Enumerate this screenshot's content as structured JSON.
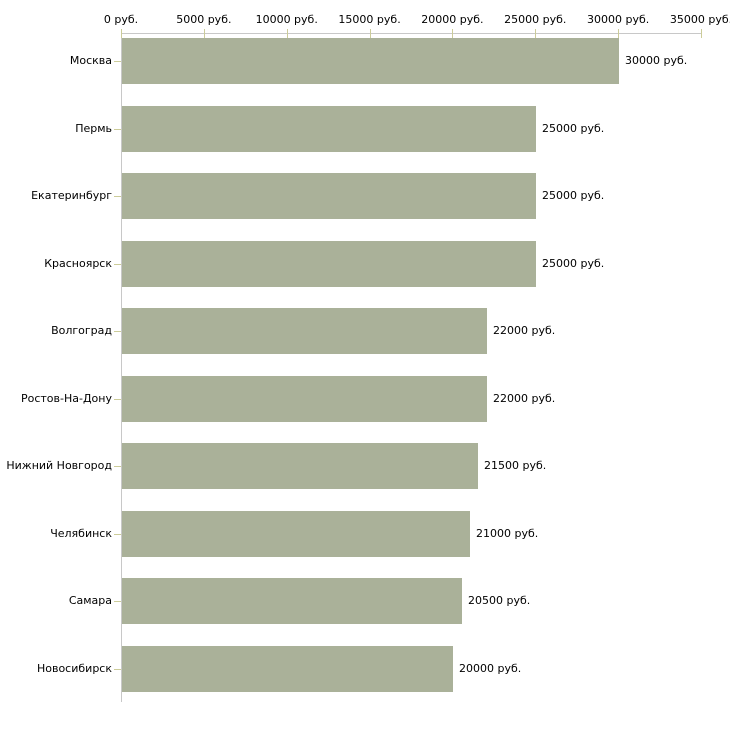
{
  "chart_data": {
    "type": "bar",
    "orientation": "horizontal",
    "title": "",
    "xlabel": "",
    "ylabel": "",
    "categories": [
      "Москва",
      "Пермь",
      "Екатеринбург",
      "Красноярск",
      "Волгоград",
      "Ростов-На-Дону",
      "Нижний Новгород",
      "Челябинск",
      "Самара",
      "Новосибирск"
    ],
    "values": [
      30000,
      25000,
      25000,
      25000,
      22000,
      22000,
      21500,
      21000,
      20500,
      20000
    ],
    "value_labels": [
      "30000 руб.",
      "25000 руб.",
      "25000 руб.",
      "25000 руб.",
      "22000 руб.",
      "22000 руб.",
      "21500 руб.",
      "21000 руб.",
      "20500 руб.",
      "20000 руб."
    ],
    "x_ticks": [
      0,
      5000,
      10000,
      15000,
      20000,
      25000,
      30000,
      35000
    ],
    "x_tick_labels": [
      "0 руб.",
      "5000 руб.",
      "10000 руб.",
      "15000 руб.",
      "20000 руб.",
      "25000 руб.",
      "30000 руб.",
      "35000 руб."
    ],
    "xlim": [
      0,
      35000
    ],
    "grid": false,
    "legend": false,
    "colors": {
      "bar": "#aab199",
      "axis": "#c8c8c8",
      "tick": "#cccc99",
      "text": "#000000",
      "background": "#ffffff"
    }
  }
}
